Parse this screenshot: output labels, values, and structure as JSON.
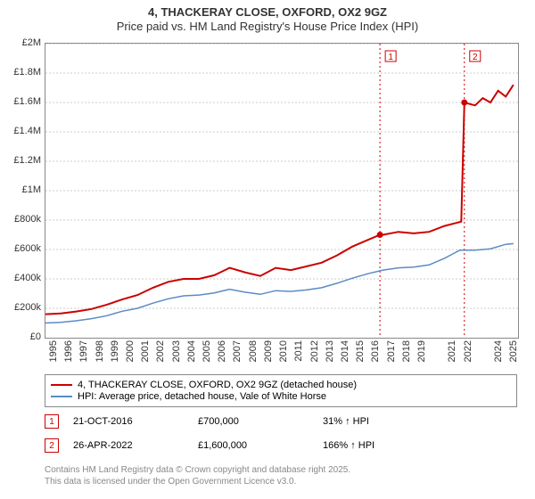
{
  "title": {
    "line1": "4, THACKERAY CLOSE, OXFORD, OX2 9GZ",
    "line2": "Price paid vs. HM Land Registry's House Price Index (HPI)"
  },
  "chart": {
    "type": "line",
    "background_color": "#ffffff",
    "grid_color": "#cccccc",
    "ylim": [
      0,
      2000000
    ],
    "ytick_step": 200000,
    "ytick_labels": [
      "£0",
      "£200k",
      "£400k",
      "£600k",
      "£800k",
      "£1M",
      "£1.2M",
      "£1.4M",
      "£1.6M",
      "£1.8M",
      "£2M"
    ],
    "xlim": [
      1995,
      2025.8
    ],
    "xticks": [
      1995,
      1996,
      1997,
      1998,
      1999,
      2000,
      2001,
      2002,
      2003,
      2004,
      2005,
      2006,
      2007,
      2008,
      2009,
      2010,
      2011,
      2012,
      2013,
      2014,
      2015,
      2016,
      2017,
      2018,
      2019,
      2021,
      2022,
      2024,
      2025
    ],
    "series": [
      {
        "name": "property",
        "label": "4, THACKERAY CLOSE, OXFORD, OX2 9GZ (detached house)",
        "color": "#cc0000",
        "line_width": 2,
        "data": [
          [
            1995,
            160000
          ],
          [
            1996,
            165000
          ],
          [
            1997,
            178000
          ],
          [
            1998,
            195000
          ],
          [
            1999,
            225000
          ],
          [
            2000,
            260000
          ],
          [
            2001,
            290000
          ],
          [
            2002,
            340000
          ],
          [
            2003,
            380000
          ],
          [
            2004,
            400000
          ],
          [
            2005,
            400000
          ],
          [
            2006,
            425000
          ],
          [
            2007,
            475000
          ],
          [
            2008,
            445000
          ],
          [
            2009,
            420000
          ],
          [
            2010,
            475000
          ],
          [
            2011,
            460000
          ],
          [
            2012,
            485000
          ],
          [
            2013,
            510000
          ],
          [
            2014,
            560000
          ],
          [
            2015,
            620000
          ],
          [
            2016,
            665000
          ],
          [
            2016.8,
            700000
          ],
          [
            2017,
            700000
          ],
          [
            2018,
            720000
          ],
          [
            2019,
            710000
          ],
          [
            2020,
            720000
          ],
          [
            2021,
            760000
          ],
          [
            2022.1,
            790000
          ],
          [
            2022.3,
            1600000
          ],
          [
            2023,
            1580000
          ],
          [
            2023.5,
            1630000
          ],
          [
            2024,
            1600000
          ],
          [
            2024.5,
            1680000
          ],
          [
            2025,
            1640000
          ],
          [
            2025.5,
            1720000
          ]
        ],
        "sale_markers": [
          {
            "x": 2016.8,
            "y": 700000,
            "label": "1"
          },
          {
            "x": 2022.3,
            "y": 1600000,
            "label": "2"
          }
        ]
      },
      {
        "name": "hpi",
        "label": "HPI: Average price, detached house, Vale of White Horse",
        "color": "#5b8bc4",
        "line_width": 1.5,
        "data": [
          [
            1995,
            100000
          ],
          [
            1996,
            105000
          ],
          [
            1997,
            115000
          ],
          [
            1998,
            130000
          ],
          [
            1999,
            150000
          ],
          [
            2000,
            180000
          ],
          [
            2001,
            200000
          ],
          [
            2002,
            235000
          ],
          [
            2003,
            265000
          ],
          [
            2004,
            285000
          ],
          [
            2005,
            290000
          ],
          [
            2006,
            305000
          ],
          [
            2007,
            330000
          ],
          [
            2008,
            310000
          ],
          [
            2009,
            295000
          ],
          [
            2010,
            320000
          ],
          [
            2011,
            315000
          ],
          [
            2012,
            325000
          ],
          [
            2013,
            340000
          ],
          [
            2014,
            370000
          ],
          [
            2015,
            405000
          ],
          [
            2016,
            435000
          ],
          [
            2017,
            460000
          ],
          [
            2018,
            475000
          ],
          [
            2019,
            480000
          ],
          [
            2020,
            495000
          ],
          [
            2021,
            540000
          ],
          [
            2022,
            595000
          ],
          [
            2023,
            595000
          ],
          [
            2024,
            605000
          ],
          [
            2025,
            635000
          ],
          [
            2025.5,
            640000
          ]
        ]
      }
    ],
    "vlines": [
      2016.8,
      2022.3
    ]
  },
  "legend": {
    "items": [
      {
        "color": "#cc0000",
        "width": 2,
        "label": "4, THACKERAY CLOSE, OXFORD, OX2 9GZ (detached house)"
      },
      {
        "color": "#5b8bc4",
        "width": 1.5,
        "label": "HPI: Average price, detached house, Vale of White Horse"
      }
    ]
  },
  "sales": [
    {
      "num": "1",
      "date": "21-OCT-2016",
      "price": "£700,000",
      "delta": "31% ↑ HPI"
    },
    {
      "num": "2",
      "date": "26-APR-2022",
      "price": "£1,600,000",
      "delta": "166% ↑ HPI"
    }
  ],
  "footer": {
    "line1": "Contains HM Land Registry data © Crown copyright and database right 2025.",
    "line2": "This data is licensed under the Open Government Licence v3.0."
  }
}
